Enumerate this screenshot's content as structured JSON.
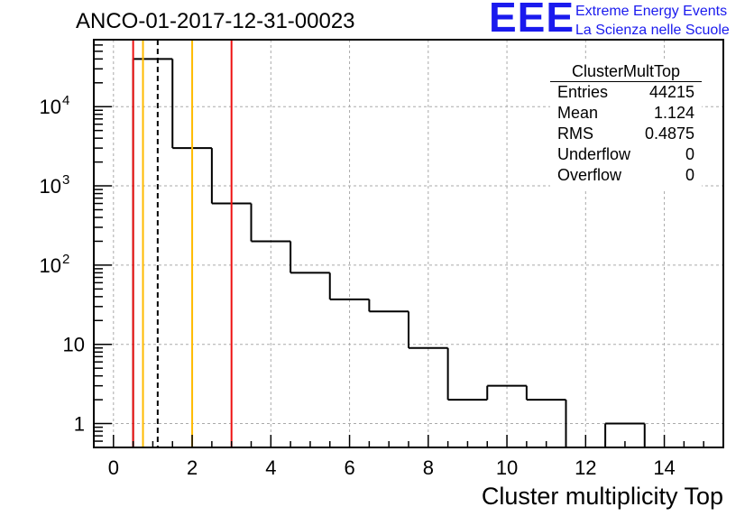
{
  "header": {
    "title": "ANCO-01-2017-12-31-00023"
  },
  "logo": {
    "mark": "EEE",
    "line1": "Extreme Energy Events",
    "line2": "La Scienza nelle Scuole"
  },
  "stats": {
    "title": "ClusterMultTop",
    "rows": [
      {
        "label": "Entries",
        "value": "44215"
      },
      {
        "label": "Mean",
        "value": "1.124"
      },
      {
        "label": "RMS",
        "value": "0.4875"
      },
      {
        "label": "Underflow",
        "value": "0"
      },
      {
        "label": "Overflow",
        "value": "0"
      }
    ]
  },
  "colors": {
    "histogram": "#000000",
    "red_line": "#ee1111",
    "orange_line": "#ffbb00",
    "grid": "#aaaaaa"
  },
  "chart_data": {
    "type": "bar",
    "style": "step-histogram",
    "xlabel": "Cluster multiplicity Top",
    "ylabel": "",
    "xlim": [
      -0.5,
      15.5
    ],
    "ylim": [
      0.5,
      70000
    ],
    "yscale": "log",
    "grid": true,
    "x_ticks": [
      0,
      2,
      4,
      6,
      8,
      10,
      12,
      14
    ],
    "y_ticks": [
      {
        "value": 1,
        "label": "1"
      },
      {
        "value": 10,
        "label": "10"
      },
      {
        "value": 100,
        "label": "10^2"
      },
      {
        "value": 1000,
        "label": "10^3"
      },
      {
        "value": 10000,
        "label": "10^4"
      }
    ],
    "bins": [
      {
        "x": 1,
        "count": 40000
      },
      {
        "x": 2,
        "count": 3000
      },
      {
        "x": 3,
        "count": 600
      },
      {
        "x": 4,
        "count": 200
      },
      {
        "x": 5,
        "count": 80
      },
      {
        "x": 6,
        "count": 37
      },
      {
        "x": 7,
        "count": 26
      },
      {
        "x": 8,
        "count": 9
      },
      {
        "x": 9,
        "count": 2
      },
      {
        "x": 10,
        "count": 3
      },
      {
        "x": 11,
        "count": 2
      },
      {
        "x": 13,
        "count": 1
      }
    ],
    "bin_width": 1,
    "vertical_lines": [
      {
        "x": 0.5,
        "color": "red"
      },
      {
        "x": 0.75,
        "color": "orange"
      },
      {
        "x": 1.124,
        "color": "black-dashed"
      },
      {
        "x": 2.0,
        "color": "orange"
      },
      {
        "x": 3.0,
        "color": "red"
      }
    ]
  }
}
